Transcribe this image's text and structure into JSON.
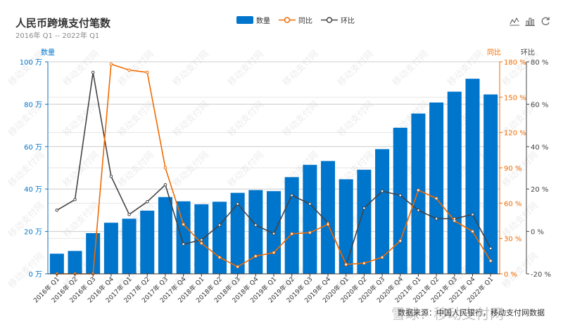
{
  "title": "人民币跨境支付笔数",
  "subtitle": "2016年 Q1 -- 2022年 Q1",
  "legend": [
    {
      "label": "数量",
      "color": "#0075cc"
    },
    {
      "label": "同比",
      "color": "#f06a00"
    },
    {
      "label": "环比",
      "color": "#444444"
    }
  ],
  "toolbox": {
    "line_icon": "line-chart-icon",
    "bar_icon": "bar-chart-icon",
    "restore_icon": "refresh-icon"
  },
  "source": "数据来源：中国人民银行，移动支付网数据",
  "watermark": "移动支付网",
  "brand": "雪球：移动支付网",
  "chart_data": {
    "type": "bar",
    "title": "人民币跨境支付笔数",
    "subtitle": "2016年 Q1 -- 2022年 Q1",
    "categories": [
      "2016年 Q1",
      "2016年 Q2",
      "2016年 Q3",
      "2016年 Q4",
      "2017年 Q1",
      "2017年 Q2",
      "2017年 Q3",
      "2017年 Q4",
      "2018年 Q1",
      "2018年 Q2",
      "2018年 Q3",
      "2018年 Q4",
      "2019年 Q1",
      "2019年 Q2",
      "2019年 Q3",
      "2019年 Q4",
      "2020年 Q1",
      "2020年 Q2",
      "2020年 Q3",
      "2020年 Q4",
      "2021年 Q1",
      "2021年 Q2",
      "2021年 Q3",
      "2021年 Q4",
      "2022年 Q1"
    ],
    "axes": {
      "left": {
        "label": "数量",
        "min": 0,
        "max": 100,
        "ticks": [
          "0 万",
          "20 万",
          "40 万",
          "60 万",
          "80 万",
          "100 万"
        ],
        "color": "#0075cc"
      },
      "right_yoy": {
        "label": "同比",
        "min": 0,
        "max": 180,
        "ticks": [
          "0 %",
          "30 %",
          "60 %",
          "90 %",
          "120 %",
          "150 %",
          "180 %"
        ],
        "color": "#f06a00"
      },
      "right_qoq": {
        "label": "环比",
        "min": -20,
        "max": 80,
        "ticks": [
          "-20 %",
          "0 %",
          "20 %",
          "40 %",
          "60 %",
          "80 %"
        ],
        "color": "#444444"
      }
    },
    "grid": true,
    "legend_position": "top-center",
    "series": [
      {
        "name": "数量",
        "type": "bar",
        "axis": "left",
        "color": "#0075cc",
        "values": [
          9.5,
          10.8,
          19.2,
          24.1,
          26.0,
          29.8,
          36.2,
          34.2,
          32.8,
          34.0,
          38.2,
          39.5,
          39.0,
          45.6,
          51.4,
          53.2,
          44.6,
          49.1,
          58.8,
          68.9,
          75.6,
          80.8,
          85.9,
          92.0,
          84.6
        ]
      },
      {
        "name": "同比",
        "type": "line",
        "axis": "right_yoy",
        "color": "#f06a00",
        "values": [
          0,
          0,
          0,
          178,
          173,
          171,
          90,
          42,
          26,
          14,
          6,
          15,
          18,
          34,
          35,
          42,
          8,
          9,
          14,
          28,
          71,
          64,
          45,
          36,
          11
        ]
      },
      {
        "name": "环比",
        "type": "line",
        "axis": "right_qoq",
        "color": "#444444",
        "values": [
          10,
          15,
          75,
          26,
          8,
          14,
          22,
          -6,
          -4,
          3,
          13,
          3,
          -1,
          17,
          13,
          4,
          -16,
          11,
          19,
          17,
          10,
          6,
          6,
          8,
          -8
        ]
      }
    ]
  }
}
